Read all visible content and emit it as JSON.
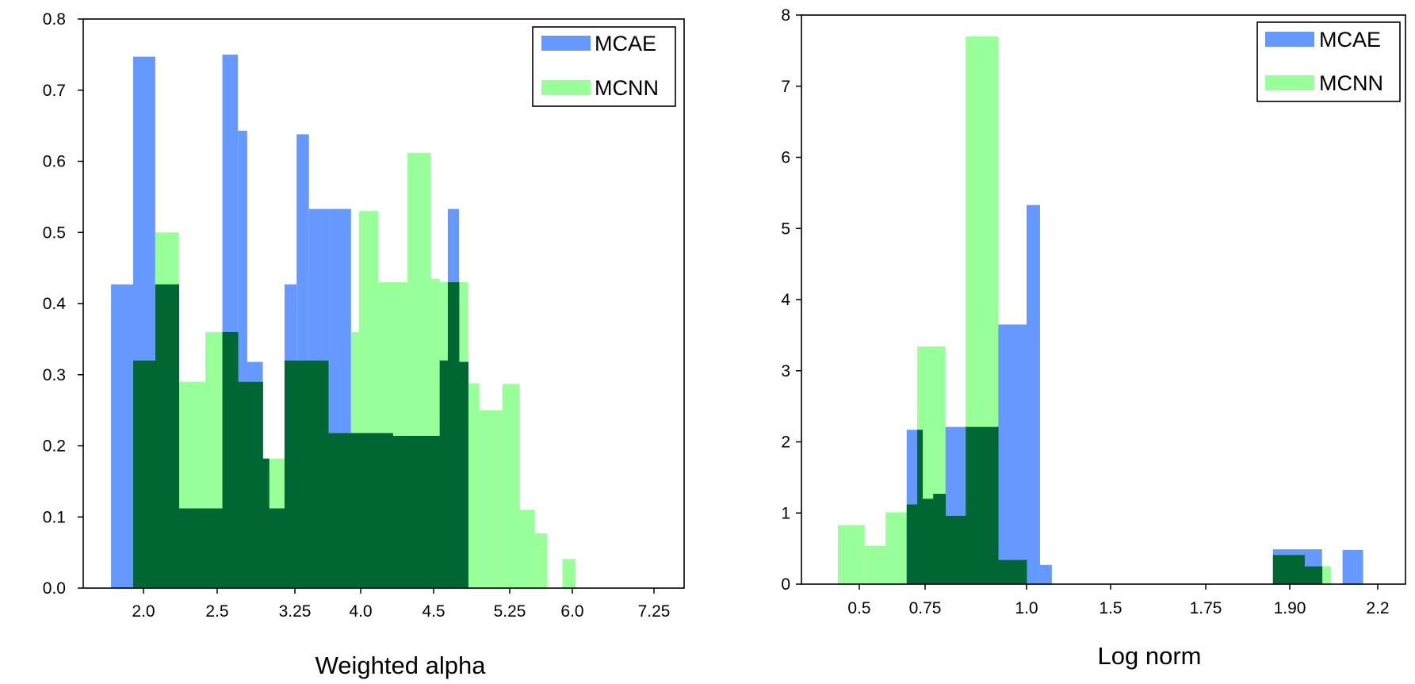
{
  "colors": {
    "mcae": "#6699ff",
    "mcnn": "#99ff99",
    "overlap": "#006633"
  },
  "chart_data": [
    {
      "type": "bar",
      "xlabel": "Weighted alpha",
      "ylabel": "",
      "ylim": [
        0,
        0.8
      ],
      "yticks": [
        "0.0",
        "0.1",
        "0.2",
        "0.3",
        "0.4",
        "0.5",
        "0.6",
        "0.7",
        "0.8"
      ],
      "xticks": [
        "2.0",
        "2.5",
        "3.25",
        "4.0",
        "4.5",
        "5.25",
        "6.0",
        "7.25"
      ],
      "legend_position": "top-right",
      "series": [
        {
          "name": "MCAE",
          "color": "#6699ff",
          "bins": [
            {
              "from": 1.78,
              "to": 1.93,
              "value": 0.427
            },
            {
              "from": 1.93,
              "to": 2.08,
              "value": 0.747
            },
            {
              "from": 2.08,
              "to": 2.24,
              "value": 0.427
            },
            {
              "from": 2.24,
              "to": 2.55,
              "value": 0.112
            },
            {
              "from": 2.55,
              "to": 2.7,
              "value": 0.75
            },
            {
              "from": 2.7,
              "to": 2.79,
              "value": 0.643
            },
            {
              "from": 2.79,
              "to": 2.94,
              "value": 0.318
            },
            {
              "from": 2.94,
              "to": 3.0,
              "value": 0.182
            },
            {
              "from": 3.0,
              "to": 3.15,
              "value": 0.112
            },
            {
              "from": 3.15,
              "to": 3.27,
              "value": 0.427
            },
            {
              "from": 3.27,
              "to": 3.41,
              "value": 0.638
            },
            {
              "from": 3.41,
              "to": 3.63,
              "value": 0.533
            },
            {
              "from": 3.63,
              "to": 3.89,
              "value": 0.533
            },
            {
              "from": 3.89,
              "to": 4.22,
              "value": 0.218
            },
            {
              "from": 4.22,
              "to": 4.56,
              "value": 0.214
            },
            {
              "from": 4.56,
              "to": 4.64,
              "value": 0.32
            },
            {
              "from": 4.64,
              "to": 4.75,
              "value": 0.533
            },
            {
              "from": 4.75,
              "to": 4.84,
              "value": 0.318
            }
          ]
        },
        {
          "name": "MCNN",
          "color": "#99ff99",
          "bins": [
            {
              "from": 1.93,
              "to": 2.08,
              "value": 0.32
            },
            {
              "from": 2.08,
              "to": 2.24,
              "value": 0.5
            },
            {
              "from": 2.24,
              "to": 2.42,
              "value": 0.29
            },
            {
              "from": 2.42,
              "to": 2.55,
              "value": 0.36
            },
            {
              "from": 2.55,
              "to": 2.7,
              "value": 0.36
            },
            {
              "from": 2.7,
              "to": 2.94,
              "value": 0.29
            },
            {
              "from": 2.94,
              "to": 3.15,
              "value": 0.182
            },
            {
              "from": 3.15,
              "to": 3.63,
              "value": 0.32
            },
            {
              "from": 3.63,
              "to": 3.89,
              "value": 0.218
            },
            {
              "from": 3.89,
              "to": 3.98,
              "value": 0.36
            },
            {
              "from": 3.98,
              "to": 4.12,
              "value": 0.53
            },
            {
              "from": 4.12,
              "to": 4.32,
              "value": 0.43
            },
            {
              "from": 4.32,
              "to": 4.48,
              "value": 0.612
            },
            {
              "from": 4.48,
              "to": 4.56,
              "value": 0.435
            },
            {
              "from": 4.56,
              "to": 4.64,
              "value": 0.43
            },
            {
              "from": 4.64,
              "to": 4.84,
              "value": 0.43
            },
            {
              "from": 4.84,
              "to": 4.95,
              "value": 0.288
            },
            {
              "from": 4.95,
              "to": 5.18,
              "value": 0.25
            },
            {
              "from": 5.18,
              "to": 5.37,
              "value": 0.287
            },
            {
              "from": 5.37,
              "to": 5.55,
              "value": 0.11
            },
            {
              "from": 5.55,
              "to": 5.7,
              "value": 0.077
            },
            {
              "from": 5.7,
              "to": 5.88,
              "value": 0
            },
            {
              "from": 5.88,
              "to": 6.05,
              "value": 0.041
            }
          ]
        }
      ]
    },
    {
      "type": "bar",
      "xlabel": "Log norm",
      "ylabel": "",
      "ylim": [
        0,
        8
      ],
      "yticks": [
        "0",
        "1",
        "2",
        "3",
        "4",
        "5",
        "6",
        "7",
        "8"
      ],
      "xticks": [
        "0.5",
        "0.75",
        "1.0",
        "1.5",
        "1.75",
        "1.90",
        "2.2"
      ],
      "legend_position": "top-right",
      "series": [
        {
          "name": "MCAE",
          "color": "#6699ff",
          "bins": [
            {
              "from": 0.68,
              "to": 0.74,
              "value": 2.17
            },
            {
              "from": 0.74,
              "to": 0.77,
              "value": 1.2
            },
            {
              "from": 0.77,
              "to": 0.8,
              "value": 1.27
            },
            {
              "from": 0.8,
              "to": 0.85,
              "value": 2.21
            },
            {
              "from": 0.85,
              "to": 0.93,
              "value": 2.21
            },
            {
              "from": 0.93,
              "to": 1.0,
              "value": 3.65
            },
            {
              "from": 1.0,
              "to": 1.08,
              "value": 5.33
            },
            {
              "from": 1.08,
              "to": 1.15,
              "value": 0.27
            },
            {
              "from": 1.87,
              "to": 2.01,
              "value": 0.49
            },
            {
              "from": 2.08,
              "to": 2.15,
              "value": 0.48
            }
          ]
        },
        {
          "name": "MCNN",
          "color": "#99ff99",
          "bins": [
            {
              "from": 0.45,
              "to": 0.52,
              "value": 0.83
            },
            {
              "from": 0.52,
              "to": 0.6,
              "value": 0.54
            },
            {
              "from": 0.6,
              "to": 0.68,
              "value": 1.01
            },
            {
              "from": 0.68,
              "to": 0.72,
              "value": 1.12
            },
            {
              "from": 0.72,
              "to": 0.8,
              "value": 3.34
            },
            {
              "from": 0.8,
              "to": 0.85,
              "value": 0.96
            },
            {
              "from": 0.85,
              "to": 0.93,
              "value": 7.7
            },
            {
              "from": 0.93,
              "to": 1.0,
              "value": 0.34
            },
            {
              "from": 1.87,
              "to": 1.95,
              "value": 0.41
            },
            {
              "from": 1.95,
              "to": 2.01,
              "value": 0.25
            },
            {
              "from": 2.01,
              "to": 2.04,
              "value": 0.25
            }
          ]
        }
      ]
    }
  ]
}
